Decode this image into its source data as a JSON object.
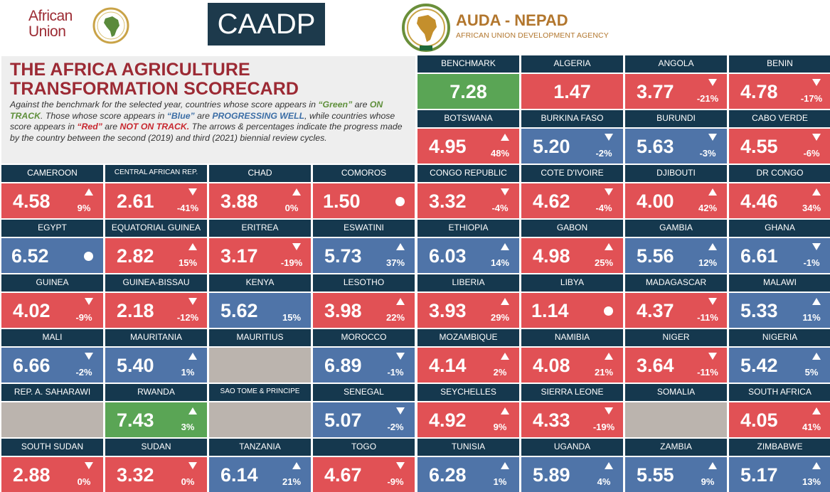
{
  "header": {
    "au_logo_line1": "African",
    "au_logo_line2": "Union",
    "caadp_logo": "CAADP",
    "auda_name": "AUDA - NEPAD",
    "auda_subtitle": "AFRICAN UNION DEVELOPMENT AGENCY"
  },
  "title_panel": {
    "title_line1": "THE AFRICA AGRICULTURE",
    "title_line2": "TRANSFORMATION SCORECARD",
    "desc_p1": "Against the benchmark for the selected year, countries whose score appears in ",
    "desc_green": "“Green”",
    "desc_p2": " are ",
    "desc_on_track": "ON TRACK",
    "desc_p3": ". Those whose score appears in ",
    "desc_blue": "“Blue”",
    "desc_p4": " are ",
    "desc_progressing": "PROGRESSING WELL",
    "desc_p5": ", while countries whose score appears in ",
    "desc_red": "“Red”",
    "desc_p6": " are ",
    "desc_not_on_track": "NOT ON TRACK.",
    "desc_p7": " The arrows & percentages indicate the progress made by the country between the second (2019) and third (2021) biennial review cycles."
  },
  "colors": {
    "header_bg": "#15384e",
    "red": "#e15155",
    "blue": "#4f74a8",
    "green": "#5aa555",
    "gray": "#bbb4ae"
  },
  "cards": [
    {
      "name": "BENCHMARK",
      "score": "7.28",
      "status": "green",
      "trend": "none",
      "pct": ""
    },
    {
      "name": "ALGERIA",
      "score": "1.47",
      "status": "red",
      "trend": "none",
      "pct": ""
    },
    {
      "name": "ANGOLA",
      "score": "3.77",
      "status": "red",
      "trend": "down",
      "pct": "-21%"
    },
    {
      "name": "BENIN",
      "score": "4.78",
      "status": "red",
      "trend": "down",
      "pct": "-17%"
    },
    {
      "name": "BOTSWANA",
      "score": "4.95",
      "status": "red",
      "trend": "up",
      "pct": "48%"
    },
    {
      "name": "BURKINA FASO",
      "score": "5.20",
      "status": "blue",
      "trend": "down",
      "pct": "-2%"
    },
    {
      "name": "BURUNDI",
      "score": "5.63",
      "status": "blue",
      "trend": "down",
      "pct": "-3%"
    },
    {
      "name": "CABO VERDE",
      "score": "4.55",
      "status": "red",
      "trend": "down",
      "pct": "-6%"
    },
    {
      "name": "CAMEROON",
      "score": "4.58",
      "status": "red",
      "trend": "up",
      "pct": "9%"
    },
    {
      "name": "CENTRAL AFRICAN REP.",
      "score": "2.61",
      "status": "red",
      "trend": "down",
      "pct": "-41%"
    },
    {
      "name": "CHAD",
      "score": "3.88",
      "status": "red",
      "trend": "up",
      "pct": "0%"
    },
    {
      "name": "COMOROS",
      "score": "1.50",
      "status": "red",
      "trend": "dot",
      "pct": ""
    },
    {
      "name": "CONGO REPUBLIC",
      "score": "3.32",
      "status": "red",
      "trend": "down",
      "pct": "-4%"
    },
    {
      "name": "COTE D'IVOIRE",
      "score": "4.62",
      "status": "red",
      "trend": "down",
      "pct": "-4%"
    },
    {
      "name": "DJIBOUTI",
      "score": "4.00",
      "status": "red",
      "trend": "up",
      "pct": "42%"
    },
    {
      "name": "DR CONGO",
      "score": "4.46",
      "status": "red",
      "trend": "up",
      "pct": "34%"
    },
    {
      "name": "EGYPT",
      "score": "6.52",
      "status": "blue",
      "trend": "dot",
      "pct": ""
    },
    {
      "name": "EQUATORIAL GUINEA",
      "score": "2.82",
      "status": "red",
      "trend": "up",
      "pct": "15%"
    },
    {
      "name": "ERITREA",
      "score": "3.17",
      "status": "red",
      "trend": "down",
      "pct": "-19%"
    },
    {
      "name": "ESWATINI",
      "score": "5.73",
      "status": "blue",
      "trend": "up",
      "pct": "37%"
    },
    {
      "name": "ETHIOPIA",
      "score": "6.03",
      "status": "blue",
      "trend": "up",
      "pct": "14%"
    },
    {
      "name": "GABON",
      "score": "4.98",
      "status": "red",
      "trend": "up",
      "pct": "25%"
    },
    {
      "name": "GAMBIA",
      "score": "5.56",
      "status": "blue",
      "trend": "up",
      "pct": "12%"
    },
    {
      "name": "GHANA",
      "score": "6.61",
      "status": "blue",
      "trend": "down",
      "pct": "-1%"
    },
    {
      "name": "GUINEA",
      "score": "4.02",
      "status": "red",
      "trend": "down",
      "pct": "-9%"
    },
    {
      "name": "GUINEA-BISSAU",
      "score": "2.18",
      "status": "red",
      "trend": "down",
      "pct": "-12%"
    },
    {
      "name": "KENYA",
      "score": "5.62",
      "status": "blue",
      "trend": "none-pct",
      "pct": "15%"
    },
    {
      "name": "LESOTHO",
      "score": "3.98",
      "status": "red",
      "trend": "up",
      "pct": "22%"
    },
    {
      "name": "LIBERIA",
      "score": "3.93",
      "status": "red",
      "trend": "up",
      "pct": "29%"
    },
    {
      "name": "LIBYA",
      "score": "1.14",
      "status": "red",
      "trend": "dot",
      "pct": ""
    },
    {
      "name": "MADAGASCAR",
      "score": "4.37",
      "status": "red",
      "trend": "down",
      "pct": "-11%"
    },
    {
      "name": "MALAWI",
      "score": "5.33",
      "status": "blue",
      "trend": "up",
      "pct": "11%"
    },
    {
      "name": "MALI",
      "score": "6.66",
      "status": "blue",
      "trend": "down",
      "pct": "-2%"
    },
    {
      "name": "MAURITANIA",
      "score": "5.40",
      "status": "blue",
      "trend": "up",
      "pct": "1%"
    },
    {
      "name": "MAURITIUS",
      "score": "",
      "status": "gray",
      "trend": "none",
      "pct": ""
    },
    {
      "name": "MOROCCO",
      "score": "6.89",
      "status": "blue",
      "trend": "down",
      "pct": "-1%"
    },
    {
      "name": "MOZAMBIQUE",
      "score": "4.14",
      "status": "red",
      "trend": "up",
      "pct": "2%"
    },
    {
      "name": "NAMIBIA",
      "score": "4.08",
      "status": "red",
      "trend": "up",
      "pct": "21%"
    },
    {
      "name": "NIGER",
      "score": "3.64",
      "status": "red",
      "trend": "down",
      "pct": "-11%"
    },
    {
      "name": "NIGERIA",
      "score": "5.42",
      "status": "blue",
      "trend": "up",
      "pct": "5%"
    },
    {
      "name": "REP. A. SAHARAWI",
      "score": "",
      "status": "gray",
      "trend": "none",
      "pct": ""
    },
    {
      "name": "RWANDA",
      "score": "7.43",
      "status": "green",
      "trend": "up",
      "pct": "3%"
    },
    {
      "name": "SAO TOME & PRINCIPE",
      "score": "",
      "status": "gray",
      "trend": "none",
      "pct": ""
    },
    {
      "name": "SENEGAL",
      "score": "5.07",
      "status": "blue",
      "trend": "down",
      "pct": "-2%"
    },
    {
      "name": "SEYCHELLES",
      "score": "4.92",
      "status": "red",
      "trend": "up",
      "pct": "9%"
    },
    {
      "name": "SIERRA LEONE",
      "score": "4.33",
      "status": "red",
      "trend": "down",
      "pct": "-19%"
    },
    {
      "name": "SOMALIA",
      "score": "",
      "status": "gray",
      "trend": "none",
      "pct": ""
    },
    {
      "name": "SOUTH AFRICA",
      "score": "4.05",
      "status": "red",
      "trend": "up",
      "pct": "41%"
    },
    {
      "name": "SOUTH SUDAN",
      "score": "2.88",
      "status": "red",
      "trend": "down",
      "pct": "0%"
    },
    {
      "name": "SUDAN",
      "score": "3.32",
      "status": "red",
      "trend": "down",
      "pct": "0%"
    },
    {
      "name": "TANZANIA",
      "score": "6.14",
      "status": "blue",
      "trend": "up",
      "pct": "21%"
    },
    {
      "name": "TOGO",
      "score": "4.67",
      "status": "red",
      "trend": "down",
      "pct": "-9%"
    },
    {
      "name": "TUNISIA",
      "score": "6.28",
      "status": "blue",
      "trend": "up",
      "pct": "1%"
    },
    {
      "name": "UGANDA",
      "score": "5.89",
      "status": "blue",
      "trend": "up",
      "pct": "4%"
    },
    {
      "name": "ZAMBIA",
      "score": "5.55",
      "status": "blue",
      "trend": "up",
      "pct": "9%"
    },
    {
      "name": "ZIMBABWE",
      "score": "5.17",
      "status": "blue",
      "trend": "up",
      "pct": "13%"
    }
  ]
}
